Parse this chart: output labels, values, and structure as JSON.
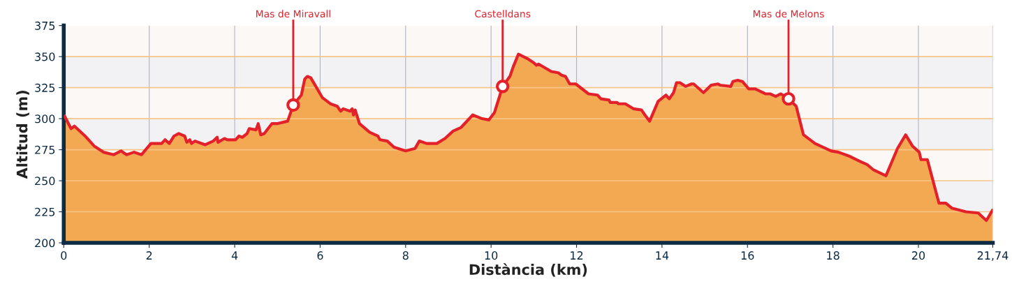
{
  "chart_data": {
    "type": "area",
    "xlabel": "Distància (km)",
    "ylabel": "Altitud (m)",
    "xlim": [
      0,
      21.74
    ],
    "ylim": [
      200,
      375
    ],
    "xticks": [
      0,
      2,
      4,
      6,
      8,
      10,
      12,
      14,
      16,
      18,
      20,
      {
        "value": 21.74,
        "label": "21,74"
      }
    ],
    "yticks": [
      200,
      225,
      250,
      275,
      300,
      325,
      350,
      375
    ],
    "grid": true,
    "legend": false,
    "marker": "none",
    "line_style": "solid",
    "x": [
      0.02,
      0.17,
      0.25,
      0.5,
      0.71,
      0.93,
      1.17,
      1.34,
      1.47,
      1.64,
      1.82,
      2.04,
      2.29,
      2.37,
      2.47,
      2.58,
      2.69,
      2.83,
      2.88,
      2.95,
      2.99,
      3.07,
      3.31,
      3.5,
      3.59,
      3.61,
      3.76,
      3.83,
      4.02,
      4.1,
      4.18,
      4.29,
      4.34,
      4.5,
      4.55,
      4.61,
      4.69,
      4.87,
      4.99,
      5.24,
      5.37,
      5.56,
      5.64,
      5.7,
      5.78,
      6.05,
      6.24,
      6.4,
      6.48,
      6.54,
      6.7,
      6.75,
      6.78,
      6.82,
      6.92,
      7.16,
      7.35,
      7.4,
      7.57,
      7.73,
      8.0,
      8.22,
      8.32,
      8.49,
      8.73,
      8.92,
      9.11,
      9.3,
      9.57,
      9.79,
      9.95,
      10.08,
      10.27,
      10.44,
      10.52,
      10.64,
      10.87,
      11.0,
      11.06,
      11.11,
      11.41,
      11.57,
      11.65,
      11.74,
      11.84,
      11.98,
      12.28,
      12.49,
      12.57,
      12.76,
      12.79,
      12.95,
      12.98,
      13.14,
      13.33,
      13.52,
      13.6,
      13.71,
      13.91,
      14.09,
      14.17,
      14.27,
      14.34,
      14.42,
      14.55,
      14.69,
      14.74,
      14.97,
      15.15,
      15.31,
      15.36,
      15.61,
      15.66,
      15.77,
      15.88,
      16.03,
      16.18,
      16.42,
      16.53,
      16.66,
      16.78,
      16.96,
      17.14,
      17.31,
      17.58,
      17.96,
      18.13,
      18.37,
      18.61,
      18.8,
      18.94,
      19.24,
      19.51,
      19.7,
      19.86,
      20.02,
      20.06,
      20.21,
      20.48,
      20.64,
      20.78,
      21.11,
      21.4,
      21.59,
      21.73
    ],
    "series": [
      {
        "color": "#e3212b",
        "values": [
          302,
          292,
          294,
          286,
          278,
          273,
          271,
          274,
          271,
          273,
          271,
          280,
          280,
          283,
          280,
          286,
          288,
          286,
          281,
          283,
          280,
          282,
          279,
          282,
          285,
          281,
          284,
          283,
          283,
          286,
          285,
          288,
          292,
          291,
          296,
          287,
          288,
          296,
          296,
          298,
          311,
          319,
          332,
          334,
          333,
          317,
          312,
          310,
          306,
          308,
          306,
          308,
          303,
          307,
          296,
          289,
          286,
          283,
          282,
          277,
          274,
          276,
          282,
          280,
          280,
          284,
          290,
          293,
          303,
          300,
          299,
          305,
          326,
          334,
          342,
          352,
          348,
          345,
          343,
          344,
          338,
          337,
          335,
          334,
          328,
          328,
          320,
          319,
          316,
          315,
          313,
          313,
          312,
          312,
          308,
          307,
          303,
          298,
          314,
          319,
          316,
          321,
          329,
          329,
          326,
          328,
          328,
          321,
          327,
          328,
          327,
          326,
          330,
          331,
          330,
          324,
          324,
          320,
          320,
          318,
          320,
          316,
          310,
          287,
          280,
          274,
          273,
          270,
          266,
          263,
          259,
          254,
          276,
          287,
          278,
          273,
          267,
          267,
          232,
          232,
          228,
          225,
          224,
          218,
          226
        ]
      }
    ],
    "annotations": [
      {
        "text": "Mas de Miravall",
        "x": 5.37,
        "y": 311
      },
      {
        "text": "Castelldans",
        "x": 10.27,
        "y": 326
      },
      {
        "text": "Mas de Melons",
        "x": 16.96,
        "y": 316
      }
    ]
  }
}
